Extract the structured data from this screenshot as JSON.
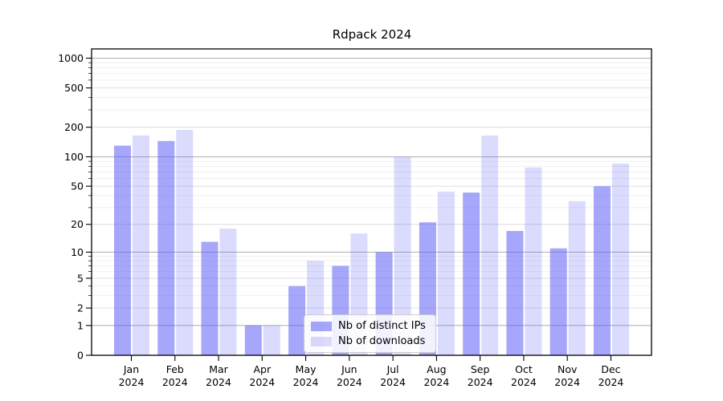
{
  "chart_data": {
    "type": "bar",
    "title": "Rdpack 2024",
    "categories": [
      "Jan",
      "Feb",
      "Mar",
      "Apr",
      "May",
      "Jun",
      "Jul",
      "Aug",
      "Sep",
      "Oct",
      "Nov",
      "Dec"
    ],
    "category_sub_label": "2024",
    "series": [
      {
        "name": "Nb of distinct IPs",
        "color": "#5c5cf5",
        "alpha": 0.55,
        "values": [
          130,
          145,
          13,
          1,
          4,
          7,
          10,
          21,
          43,
          17,
          11,
          50
        ]
      },
      {
        "name": "Nb of downloads",
        "color": "#5c5cf5",
        "alpha": 0.22,
        "values": [
          165,
          188,
          18,
          1,
          8,
          16,
          100,
          44,
          165,
          78,
          35,
          85
        ]
      }
    ],
    "xlabel": "",
    "ylabel": "",
    "yscale": "log1p",
    "ylim": [
      0,
      1240
    ],
    "yticks": [
      0,
      1,
      2,
      5,
      10,
      20,
      50,
      100,
      200,
      500,
      1000
    ],
    "yminor_ticks": [
      3,
      4,
      6,
      7,
      8,
      9,
      30,
      40,
      60,
      70,
      80,
      90,
      300,
      400,
      600,
      700,
      800,
      900
    ],
    "grid": true,
    "legend": {
      "position": "bottom-center"
    },
    "colors": {
      "grid_major_power10": "#b6b6b6",
      "grid_major": "#dcdcdc",
      "grid_minor": "#ededed",
      "spine": "#000000",
      "text": "#000000"
    }
  }
}
